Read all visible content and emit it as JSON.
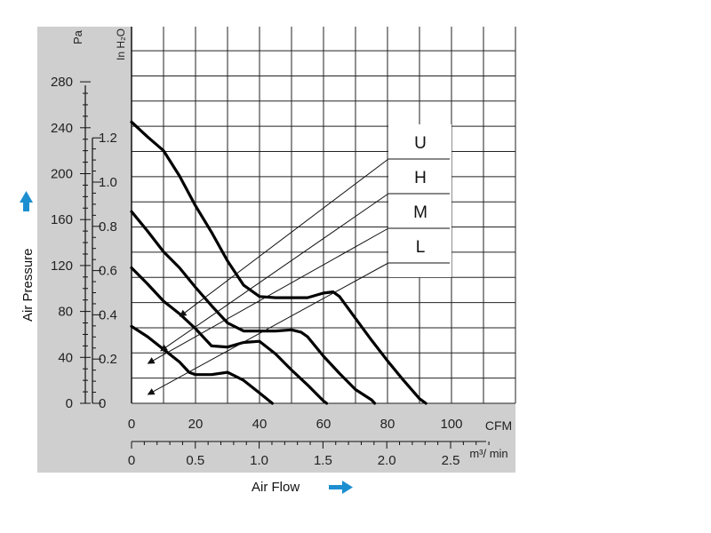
{
  "chart_data": {
    "type": "line",
    "title": "",
    "xlabel": "Air Flow",
    "ylabel": "Air Pressure",
    "x_unit": "CFM",
    "x2_unit": "m³/ min",
    "y_unit": "Pa",
    "y2_unit": "In H₂O",
    "xlim": [
      0,
      120
    ],
    "ylim": [
      0,
      310
    ],
    "x_ticks": [
      "0",
      "20",
      "40",
      "60",
      "80",
      "100"
    ],
    "x2_ticks": [
      "0",
      "0.5",
      "1.0",
      "1.5",
      "2.0",
      "2.5"
    ],
    "y_ticks": [
      "0",
      "40",
      "80",
      "120",
      "160",
      "200",
      "240",
      "280"
    ],
    "y2_ticks": [
      "0",
      "0.2",
      "0.4",
      "0.6",
      "0.8",
      "1.0",
      "1.2"
    ],
    "grid": true,
    "series": [
      {
        "name": "U",
        "x": [
          0,
          5,
          10,
          15,
          20,
          25,
          30,
          35,
          40,
          45,
          50,
          55,
          60,
          63,
          65,
          70,
          75,
          80,
          85,
          90,
          92
        ],
        "values": [
          245,
          232,
          220,
          198,
          172,
          149,
          124,
          103,
          93,
          92,
          92,
          92,
          96,
          97,
          93,
          74,
          55,
          37,
          20,
          4,
          0
        ]
      },
      {
        "name": "H",
        "x": [
          0,
          5,
          10,
          15,
          20,
          25,
          30,
          35,
          40,
          45,
          50,
          53,
          55,
          60,
          65,
          70,
          75,
          76
        ],
        "values": [
          167,
          150,
          132,
          118,
          101,
          85,
          70,
          63,
          63,
          63,
          64,
          62,
          58,
          41,
          26,
          12,
          3,
          0
        ]
      },
      {
        "name": "M",
        "x": [
          0,
          5,
          10,
          15,
          20,
          25,
          30,
          35,
          40,
          45,
          50,
          55,
          60,
          61
        ],
        "values": [
          118,
          104,
          89,
          78,
          65,
          50,
          49,
          53,
          54,
          43,
          29,
          16,
          2,
          0
        ]
      },
      {
        "name": "L",
        "x": [
          0,
          5,
          10,
          15,
          18,
          20,
          25,
          30,
          35,
          40,
          44
        ],
        "values": [
          67,
          58,
          47,
          36,
          27,
          25,
          25,
          27,
          20,
          9,
          0
        ]
      }
    ]
  }
}
